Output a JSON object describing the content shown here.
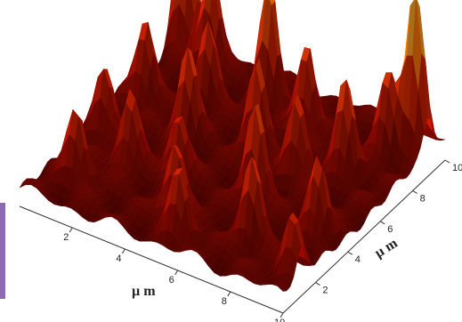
{
  "chart_data": {
    "type": "surface3d",
    "title": "",
    "xlabel": "µ m",
    "ylabel": "µ m",
    "zlabel": "",
    "xlim": [
      0,
      10
    ],
    "ylim": [
      0,
      10
    ],
    "x_ticks": [
      "2",
      "4",
      "6",
      "8",
      "10"
    ],
    "y_ticks": [
      "2",
      "4",
      "6",
      "8",
      "10"
    ],
    "colormap": "hot",
    "colors": {
      "low": "#3a0000",
      "mid": "#c81e00",
      "high": "#ff7a00",
      "peak": "#fff04a"
    },
    "peaks": [
      {
        "x": 0.4,
        "y": 9.6,
        "z": 0.95
      },
      {
        "x": 9.5,
        "y": 9.0,
        "z": 1.0
      },
      {
        "x": 4.2,
        "y": 8.6,
        "z": 0.7
      },
      {
        "x": 1.6,
        "y": 9.2,
        "z": 0.65
      },
      {
        "x": 3.0,
        "y": 5.5,
        "z": 0.55
      },
      {
        "x": 6.5,
        "y": 4.0,
        "z": 0.58
      },
      {
        "x": 8.2,
        "y": 6.8,
        "z": 0.55
      },
      {
        "x": 7.6,
        "y": 2.0,
        "z": 0.5
      },
      {
        "x": 0.8,
        "y": 6.5,
        "z": 0.5
      },
      {
        "x": 2.2,
        "y": 3.2,
        "z": 0.45
      },
      {
        "x": 5.2,
        "y": 6.2,
        "z": 0.52
      },
      {
        "x": 9.2,
        "y": 3.5,
        "z": 0.45
      },
      {
        "x": 4.8,
        "y": 1.8,
        "z": 0.45
      },
      {
        "x": 1.2,
        "y": 1.6,
        "z": 0.42
      },
      {
        "x": 6.0,
        "y": 8.0,
        "z": 0.55
      },
      {
        "x": 8.8,
        "y": 8.4,
        "z": 0.5
      },
      {
        "x": 3.8,
        "y": 3.6,
        "z": 0.4
      },
      {
        "x": 7.0,
        "y": 5.8,
        "z": 0.48
      },
      {
        "x": 2.6,
        "y": 7.4,
        "z": 0.5
      },
      {
        "x": 5.6,
        "y": 0.8,
        "z": 0.42
      },
      {
        "x": 9.6,
        "y": 1.2,
        "z": 0.35
      },
      {
        "x": 0.6,
        "y": 4.2,
        "z": 0.4
      }
    ]
  }
}
